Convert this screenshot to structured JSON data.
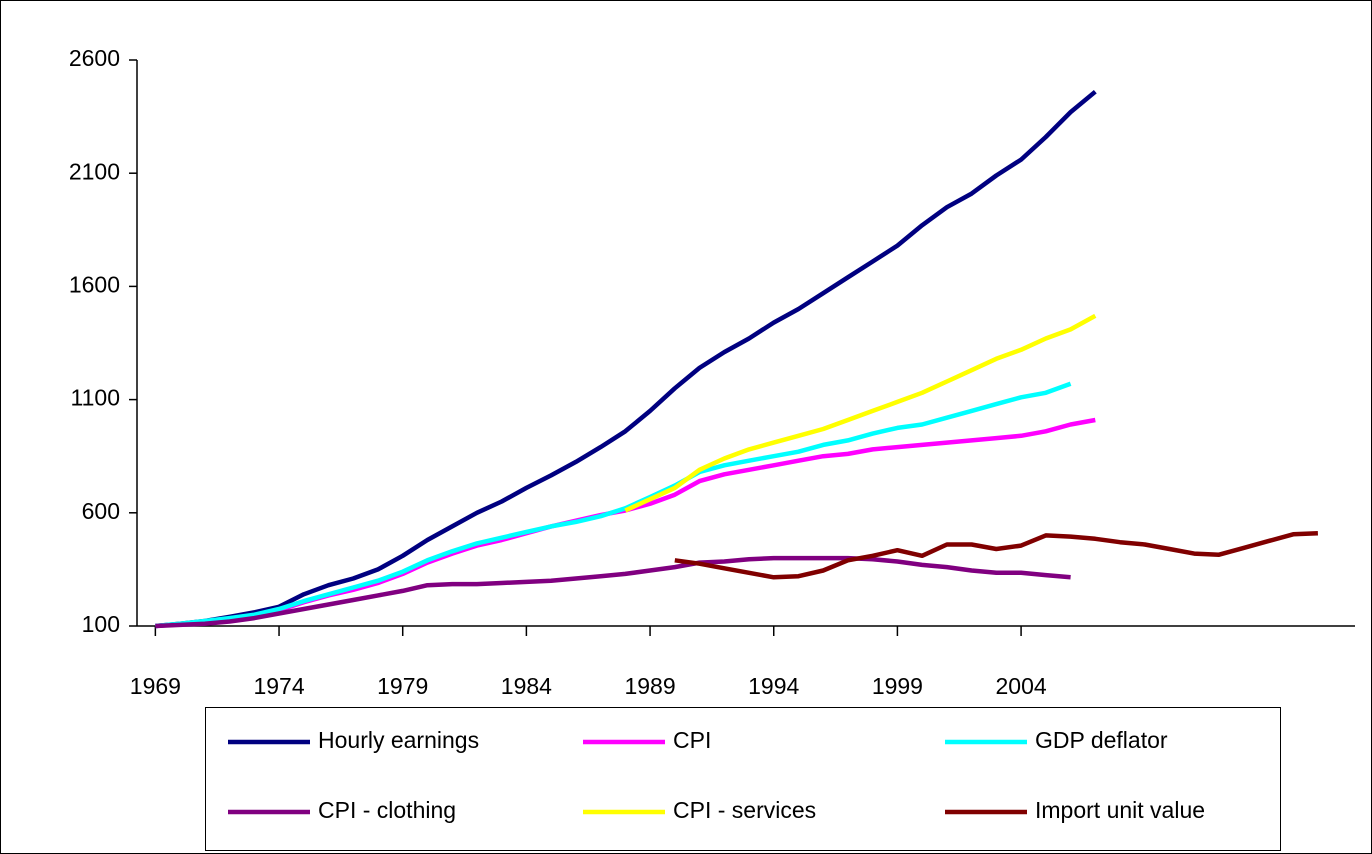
{
  "chart_data": {
    "type": "line",
    "x": [
      1969,
      1970,
      1971,
      1972,
      1973,
      1974,
      1975,
      1976,
      1977,
      1978,
      1979,
      1980,
      1981,
      1982,
      1983,
      1984,
      1985,
      1986,
      1987,
      1988,
      1989,
      1990,
      1991,
      1992,
      1993,
      1994,
      1995,
      1996,
      1997,
      1998,
      1999,
      2000,
      2001,
      2002,
      2003,
      2004,
      2005,
      2006,
      2007,
      2008,
      2009,
      2010,
      2011,
      2012,
      2013,
      2014,
      2015,
      2016
    ],
    "xlim": [
      1968.5,
      2017.5
    ],
    "xticks": [
      1969,
      1974,
      1979,
      1984,
      1989,
      1994,
      1999,
      2004
    ],
    "ylim": [
      100,
      2600
    ],
    "yticks": [
      100,
      600,
      1100,
      1600,
      2100,
      2600
    ],
    "legend": "bottom",
    "series": [
      {
        "name": "Hourly earnings",
        "color": "#000080",
        "values": [
          100,
          110,
          122,
          140,
          160,
          185,
          240,
          280,
          310,
          350,
          410,
          480,
          540,
          600,
          650,
          710,
          765,
          825,
          890,
          960,
          1050,
          1150,
          1240,
          1310,
          1370,
          1440,
          1500,
          1570,
          1640,
          1710,
          1780,
          1870,
          1950,
          2010,
          2090,
          2160,
          2260,
          2370,
          2460,
          null,
          null,
          null,
          null,
          null,
          null,
          null,
          null,
          null
        ]
      },
      {
        "name": "CPI",
        "color": "#ff00ff",
        "values": [
          100,
          108,
          120,
          130,
          145,
          170,
          205,
          235,
          260,
          290,
          330,
          380,
          420,
          455,
          480,
          510,
          540,
          565,
          590,
          610,
          640,
          680,
          740,
          770,
          790,
          810,
          830,
          850,
          860,
          880,
          890,
          900,
          910,
          920,
          930,
          940,
          960,
          990,
          1010,
          null,
          null,
          null,
          null,
          null,
          null,
          null,
          null,
          null
        ]
      },
      {
        "name": "GDP deflator",
        "color": "#00ffff",
        "values": [
          100,
          110,
          122,
          135,
          150,
          175,
          210,
          240,
          270,
          300,
          340,
          390,
          430,
          465,
          490,
          515,
          540,
          560,
          585,
          620,
          670,
          720,
          780,
          810,
          830,
          850,
          870,
          900,
          920,
          950,
          975,
          990,
          1020,
          1050,
          1080,
          1110,
          1130,
          1170,
          null,
          null,
          null,
          null,
          null,
          null,
          null,
          null,
          null,
          null
        ]
      },
      {
        "name": "CPI - clothing",
        "color": "#800080",
        "values": [
          100,
          105,
          110,
          120,
          135,
          155,
          175,
          195,
          215,
          235,
          255,
          280,
          285,
          285,
          290,
          295,
          300,
          310,
          320,
          330,
          345,
          360,
          380,
          385,
          395,
          400,
          400,
          400,
          400,
          395,
          385,
          370,
          360,
          345,
          335,
          335,
          325,
          315,
          null,
          null,
          null,
          null,
          null,
          null,
          null,
          null,
          null,
          null
        ]
      },
      {
        "name": "CPI - services",
        "color": "#ffff00",
        "values": [
          null,
          null,
          null,
          null,
          null,
          null,
          null,
          null,
          null,
          null,
          null,
          null,
          null,
          null,
          null,
          null,
          null,
          null,
          null,
          610,
          660,
          710,
          790,
          840,
          880,
          910,
          940,
          970,
          1010,
          1050,
          1090,
          1130,
          1180,
          1230,
          1280,
          1320,
          1370,
          1410,
          1470,
          null,
          null,
          null,
          null,
          null,
          null,
          null,
          null,
          null
        ]
      },
      {
        "name": "Import unit value",
        "color": "#800000",
        "values": [
          null,
          null,
          null,
          null,
          null,
          null,
          null,
          null,
          null,
          null,
          null,
          null,
          null,
          null,
          null,
          null,
          null,
          null,
          null,
          null,
          null,
          390,
          375,
          355,
          335,
          315,
          320,
          345,
          390,
          410,
          435,
          410,
          460,
          460,
          440,
          455,
          500,
          495,
          485,
          470,
          460,
          440,
          420,
          415,
          445,
          475,
          505,
          510
        ]
      }
    ]
  }
}
